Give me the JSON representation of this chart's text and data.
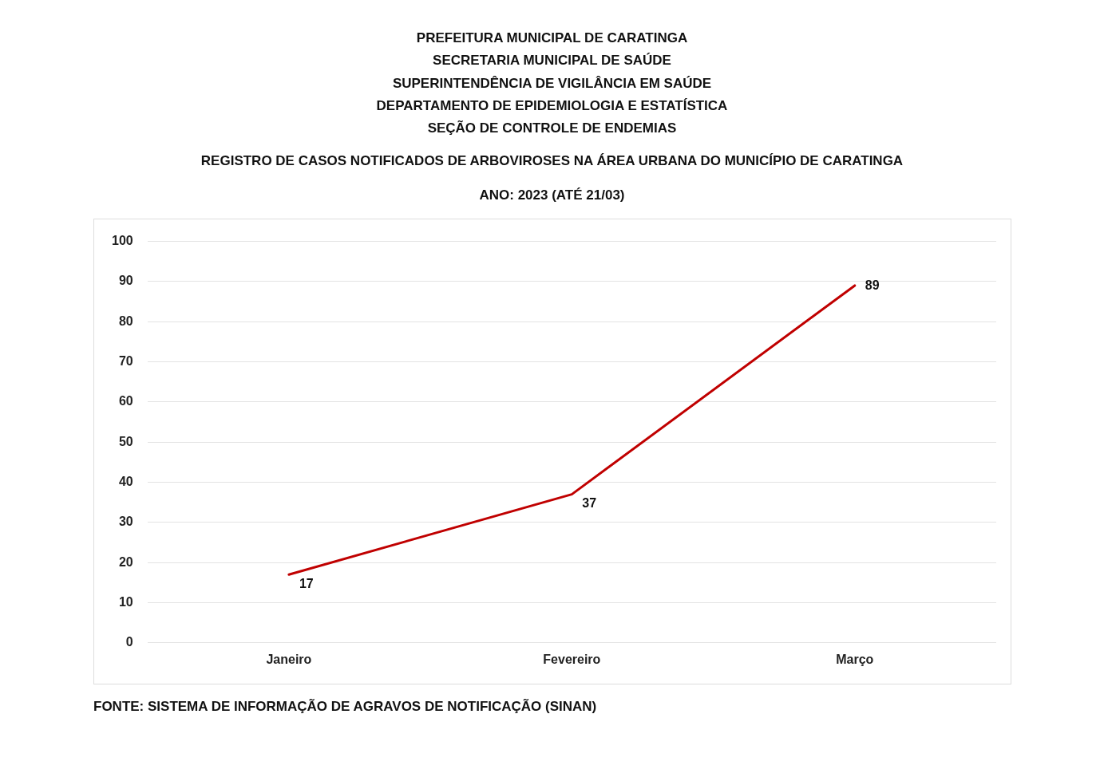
{
  "chart_data": {
    "type": "line",
    "title": "REGISTRO DE CASOS NOTIFICADOS DE ARBOVIROSES NA ÁREA URBANA DO MUNICÍPIO DE CARATINGA",
    "subtitle": "ANO: 2023 (ATÉ 21/03)",
    "annotations": [
      "PREFEITURA MUNICIPAL DE CARATINGA",
      "SECRETARIA MUNICIPAL DE SAÚDE",
      "SUPERINTENDÊNCIA DE VIGILÂNCIA EM SAÚDE",
      "DEPARTAMENTO DE EPIDEMIOLOGIA E ESTATÍSTICA",
      "SEÇÃO DE CONTROLE DE ENDEMIAS",
      "FONTE: SISTEMA DE INFORMAÇÃO DE AGRAVOS DE NOTIFICAÇÃO (SINAN)"
    ],
    "categories": [
      "Janeiro",
      "Fevereiro",
      "Março"
    ],
    "series": [
      {
        "color": "#c00000",
        "values": [
          17,
          37,
          89
        ]
      }
    ],
    "ylim": [
      0,
      100
    ],
    "yticks": [
      0,
      10,
      20,
      30,
      40,
      50,
      60,
      70,
      80,
      90,
      100
    ],
    "grid": "y",
    "data_labels": true,
    "marker": "none",
    "line_style": "solid",
    "legend": false
  }
}
